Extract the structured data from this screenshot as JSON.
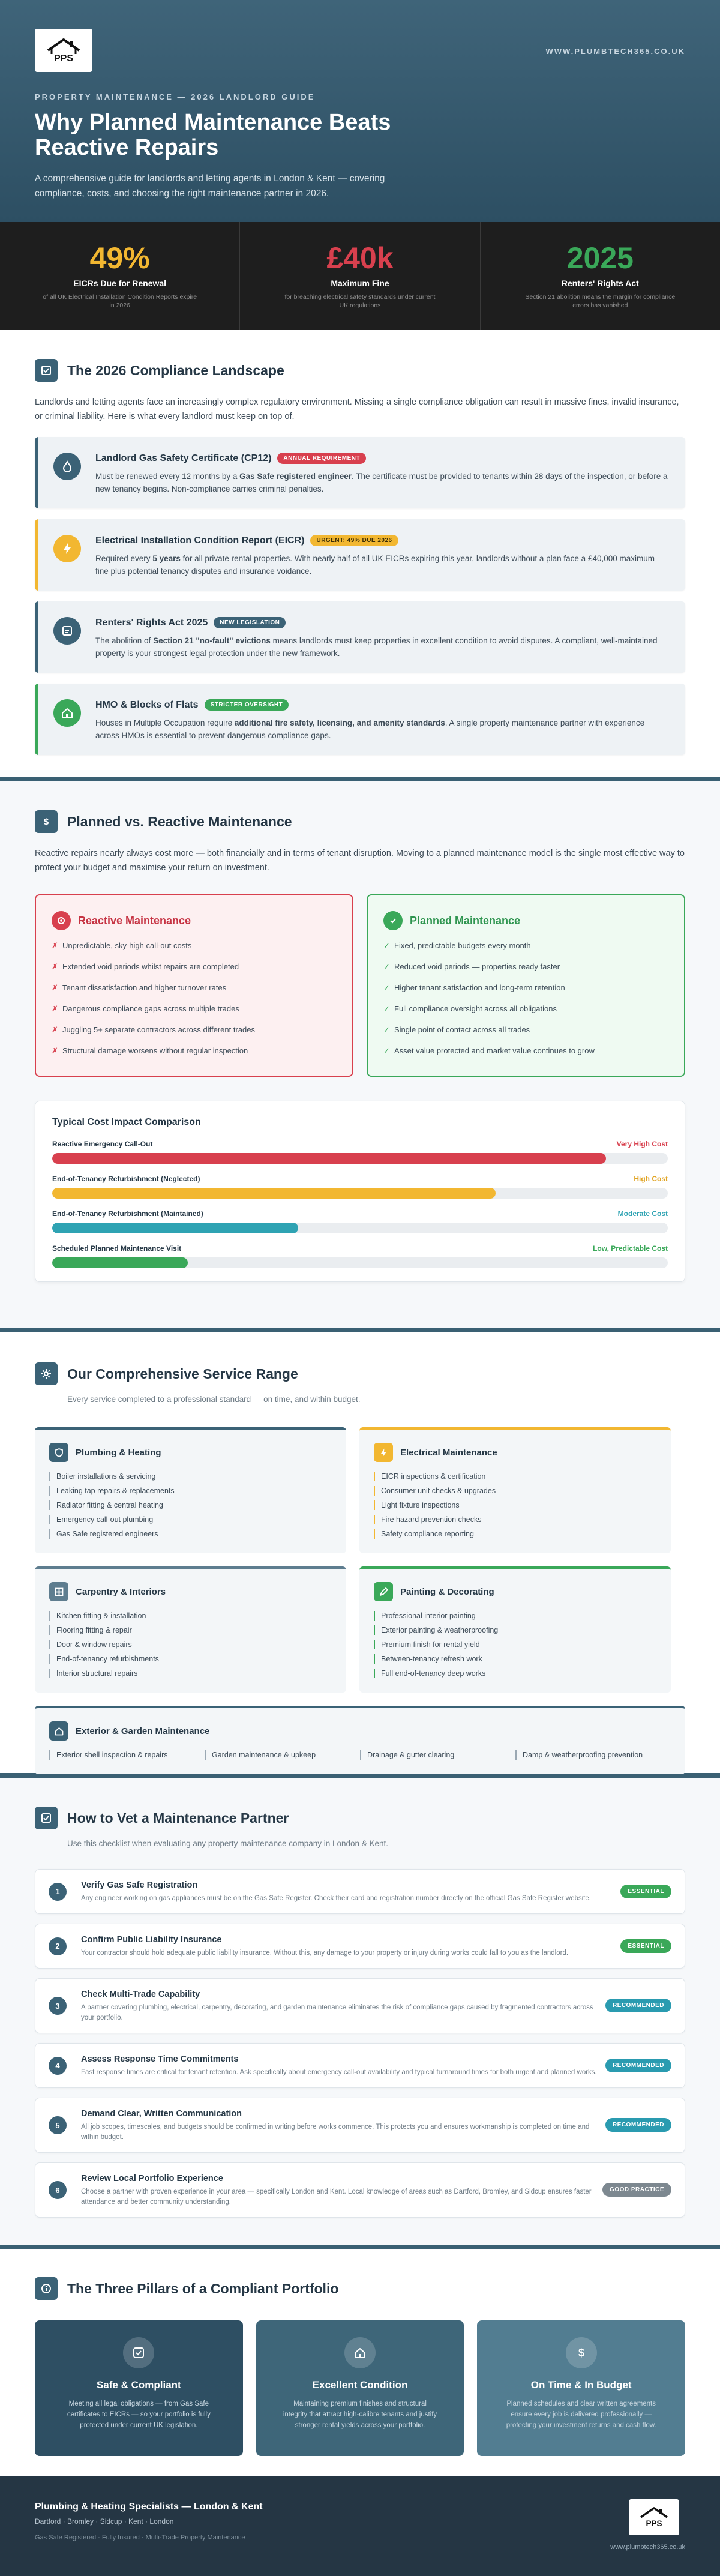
{
  "header": {
    "logo_text": "PPS",
    "url": "WWW.PLUMBTECH365.CO.UK",
    "kicker": "PROPERTY MAINTENANCE — 2026 LANDLORD GUIDE",
    "title": "Why Planned Maintenance Beats Reactive Repairs",
    "subtitle": "A comprehensive guide for landlords and letting agents in London & Kent — covering compliance, costs, and choosing the right maintenance partner in 2026."
  },
  "stats": [
    {
      "value": "49%",
      "label": "EICRs Due for Renewal",
      "desc": "of all UK Electrical Installation Condition Reports expire in 2026",
      "color": "#f2b731"
    },
    {
      "value": "£40k",
      "label": "Maximum Fine",
      "desc": "for breaching electrical safety standards under current UK regulations",
      "color": "#d8404e"
    },
    {
      "value": "2025",
      "label": "Renters' Rights Act",
      "desc": "Section 21 abolition means the margin for compliance errors has vanished",
      "color": "#3aa859"
    }
  ],
  "compliance": {
    "title": "The 2026 Compliance Landscape",
    "intro": "Landlords and letting agents face an increasingly complex regulatory environment. Missing a single compliance obligation can result in massive fines, invalid insurance, or criminal liability. Here is what every landlord must keep on top of.",
    "cards": [
      {
        "title": "Landlord Gas Safety Certificate (CP12)",
        "badge": "ANNUAL REQUIREMENT",
        "badge_color": "#d8404e",
        "accent": "#3b6276",
        "icon": "gas-flame-icon",
        "text_a": "Must be renewed every 12 months by a ",
        "bold": "Gas Safe registered engineer",
        "text_b": ". The certificate must be provided to tenants within 28 days of the inspection, or before a new tenancy begins. Non-compliance carries criminal penalties."
      },
      {
        "title": "Electrical Installation Condition Report (EICR)",
        "badge": "URGENT: 49% DUE 2026",
        "badge_color": "#f2b731",
        "accent": "#f2b731",
        "icon": "lightning-icon",
        "text_a": "Required every ",
        "bold": "5 years",
        "text_b": " for all private rental properties. With nearly half of all UK EICRs expiring this year, landlords without a plan face a £40,000 maximum fine plus potential tenancy disputes and insurance voidance."
      },
      {
        "title": "Renters' Rights Act 2025",
        "badge": "NEW LEGISLATION",
        "badge_color": "#3b6276",
        "accent": "#3b6276",
        "icon": "document-icon",
        "text_a": "The abolition of ",
        "bold": "Section 21 \"no-fault\" evictions",
        "text_b": " means landlords must keep properties in excellent condition to avoid disputes. A compliant, well-maintained property is your strongest legal protection under the new framework."
      },
      {
        "title": "HMO & Blocks of Flats",
        "badge": "STRICTER OVERSIGHT",
        "badge_color": "#3aa859",
        "accent": "#3aa859",
        "icon": "house-icon",
        "text_a": "Houses in Multiple Occupation require ",
        "bold": "additional fire safety, licensing, and amenity standards",
        "text_b": ". A single property maintenance partner with experience across HMOs is essential to prevent dangerous compliance gaps."
      }
    ]
  },
  "pvr": {
    "title": "Planned vs. Reactive Maintenance",
    "intro": "Reactive repairs nearly always cost more — both financially and in terms of tenant disruption. Moving to a planned maintenance model is the single most effective way to protect your budget and maximise your return on investment.",
    "reactive": {
      "title": "Reactive Maintenance",
      "items": [
        "Unpredictable, sky-high call-out costs",
        "Extended void periods whilst repairs are completed",
        "Tenant dissatisfaction and higher turnover rates",
        "Dangerous compliance gaps across multiple trades",
        "Juggling 5+ separate contractors across different trades",
        "Structural damage worsens without regular inspection"
      ]
    },
    "planned": {
      "title": "Planned Maintenance",
      "items": [
        "Fixed, predictable budgets every month",
        "Reduced void periods — properties ready faster",
        "Higher tenant satisfaction and long-term retention",
        "Full compliance oversight across all obligations",
        "Single point of contact across all trades",
        "Asset value protected and market value continues to grow"
      ]
    },
    "cost": {
      "title": "Typical Cost Impact Comparison",
      "rows": [
        {
          "label": "Reactive Emergency Call-Out",
          "level": "Very High Cost",
          "fill": 0.9,
          "color": "#d8404e"
        },
        {
          "label": "End-of-Tenancy Refurbishment (Neglected)",
          "level": "High Cost",
          "fill": 0.72,
          "color": "#f2b731"
        },
        {
          "label": "End-of-Tenancy Refurbishment (Maintained)",
          "level": "Moderate Cost",
          "fill": 0.4,
          "color": "#2fa3b3"
        },
        {
          "label": "Scheduled Planned Maintenance Visit",
          "level": "Low, Predictable Cost",
          "fill": 0.22,
          "color": "#3aa859"
        }
      ]
    }
  },
  "services": {
    "title": "Our Comprehensive Service Range",
    "intro": "Every service completed to a professional standard — on time, and within budget.",
    "cards": [
      {
        "title": "Plumbing & Heating",
        "accent": "#3b6276",
        "icon": "shield-icon",
        "items": [
          "Boiler installations & servicing",
          "Leaking tap repairs & replacements",
          "Radiator fitting & central heating",
          "Emergency call-out plumbing",
          "Gas Safe registered engineers"
        ]
      },
      {
        "title": "Electrical Maintenance",
        "accent": "#f2b731",
        "icon": "lightning-icon",
        "items": [
          "EICR inspections & certification",
          "Consumer unit checks & upgrades",
          "Light fixture inspections",
          "Fire hazard prevention checks",
          "Safety compliance reporting"
        ]
      },
      {
        "title": "Carpentry & Interiors",
        "accent": "#3b6276",
        "icon": "grid-icon",
        "items": [
          "Kitchen fitting & installation",
          "Flooring fitting & repair",
          "Door & window repairs",
          "End-of-tenancy refurbishments",
          "Interior structural repairs"
        ]
      },
      {
        "title": "Painting & Decorating",
        "accent": "#3aa859",
        "icon": "brush-icon",
        "items": [
          "Professional interior painting",
          "Exterior painting & weatherproofing",
          "Premium finish for rental yield",
          "Between-tenancy refresh work",
          "Full end-of-tenancy deep works"
        ]
      }
    ],
    "wide": {
      "title": "Exterior & Garden Maintenance",
      "icon": "home-icon",
      "items": [
        "Exterior shell inspection & repairs",
        "Garden maintenance & upkeep",
        "Drainage & gutter clearing",
        "Damp & weatherproofing prevention"
      ]
    }
  },
  "vet": {
    "title": "How to Vet a Maintenance Partner",
    "intro": "Use this checklist when evaluating any property maintenance company in London & Kent.",
    "items": [
      {
        "num": "1",
        "title": "Verify Gas Safe Registration",
        "text": "Any engineer working on gas appliances must be on the Gas Safe Register. Check their card and registration number directly on the official Gas Safe Register website.",
        "badge": "ESSENTIAL",
        "badge_color": "#3aa859"
      },
      {
        "num": "2",
        "title": "Confirm Public Liability Insurance",
        "text": "Your contractor should hold adequate public liability insurance. Without this, any damage to your property or injury during works could fall to you as the landlord.",
        "badge": "ESSENTIAL",
        "badge_color": "#3aa859"
      },
      {
        "num": "3",
        "title": "Check Multi-Trade Capability",
        "text": "A partner covering plumbing, electrical, carpentry, decorating, and garden maintenance eliminates the risk of compliance gaps caused by fragmented contractors across your portfolio.",
        "badge": "RECOMMENDED",
        "badge_color": "#2a9bb0"
      },
      {
        "num": "4",
        "title": "Assess Response Time Commitments",
        "text": "Fast response times are critical for tenant retention. Ask specifically about emergency call-out availability and typical turnaround times for both urgent and planned works.",
        "badge": "RECOMMENDED",
        "badge_color": "#2a9bb0"
      },
      {
        "num": "5",
        "title": "Demand Clear, Written Communication",
        "text": "All job scopes, timescales, and budgets should be confirmed in writing before works commence. This protects you and ensures workmanship is completed on time and within budget.",
        "badge": "RECOMMENDED",
        "badge_color": "#2a9bb0"
      },
      {
        "num": "6",
        "title": "Review Local Portfolio Experience",
        "text": "Choose a partner with proven experience in your area — specifically London and Kent. Local knowledge of areas such as Dartford, Bromley, and Sidcup ensures faster attendance and better community understanding.",
        "badge": "GOOD PRACTICE",
        "badge_color": "#7d8890"
      }
    ]
  },
  "pillars": {
    "title": "The Three Pillars of a Compliant Portfolio",
    "items": [
      {
        "title": "Safe & Compliant",
        "icon": "check-icon",
        "bg": "#2e4f63",
        "text": "Meeting all legal obligations — from Gas Safe certificates to EICRs — so your portfolio is fully protected under current UK legislation."
      },
      {
        "title": "Excellent Condition",
        "icon": "home-icon",
        "bg": "#3e6679",
        "text": "Maintaining premium finishes and structural integrity that attract high-calibre tenants and justify stronger rental yields across your portfolio."
      },
      {
        "title": "On Time & In Budget",
        "icon": "dollar-icon",
        "bg": "#527d91",
        "text": "Planned schedules and clear written agreements ensure every job is delivered professionally — protecting your investment returns and cash flow."
      }
    ]
  },
  "footer": {
    "title": "Plumbing & Heating Specialists — London & Kent",
    "areas": "Dartford · Bromley · Sidcup · Kent · London",
    "tagline": "Gas Safe Registered · Fully Insured · Multi-Trade Property Maintenance",
    "logo_text": "PPS",
    "url": "www.plumbtech365.co.uk"
  }
}
